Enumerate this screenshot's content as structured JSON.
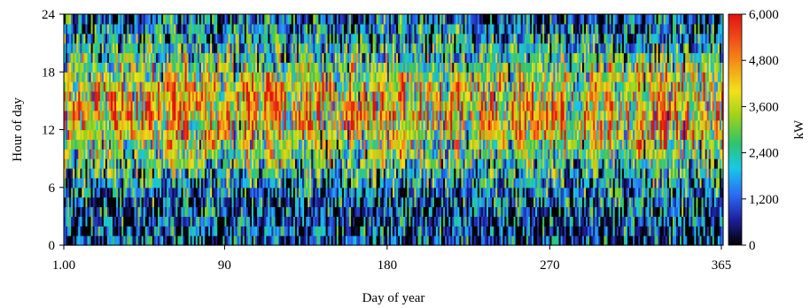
{
  "chart_data": {
    "type": "heatmap",
    "xlabel": "Day of year",
    "ylabel": "Hour of day",
    "x_ticks": [
      {
        "value": 1,
        "label": "1.00"
      },
      {
        "value": 90,
        "label": "90"
      },
      {
        "value": 180,
        "label": "180"
      },
      {
        "value": 270,
        "label": "270"
      },
      {
        "value": 365,
        "label": "365"
      }
    ],
    "y_ticks": [
      {
        "value": 0,
        "label": "0"
      },
      {
        "value": 6,
        "label": "6"
      },
      {
        "value": 12,
        "label": "12"
      },
      {
        "value": 18,
        "label": "18"
      },
      {
        "value": 24,
        "label": "24"
      }
    ],
    "xlim": [
      1,
      366
    ],
    "ylim": [
      0,
      24
    ],
    "colorbar": {
      "label": "kW",
      "range": [
        0,
        6000
      ],
      "ticks": [
        {
          "value": 0,
          "label": "0"
        },
        {
          "value": 1200,
          "label": "1,200"
        },
        {
          "value": 2400,
          "label": "2,400"
        },
        {
          "value": 3600,
          "label": "3,600"
        },
        {
          "value": 4800,
          "label": "4,800"
        },
        {
          "value": 6000,
          "label": "6,000"
        }
      ],
      "colors": [
        "#000000",
        "#1f1f9e",
        "#2a6ef5",
        "#18c8e8",
        "#2fc46a",
        "#9ad21a",
        "#f2e11b",
        "#f39a16",
        "#f0501a",
        "#e0120f"
      ]
    },
    "resolution": {
      "days": 365,
      "hours": 24
    },
    "pattern": "power in kW is highest during midday hours (roughly 8 to 20) and lowest at night; strong day-to-day variation across the year"
  }
}
